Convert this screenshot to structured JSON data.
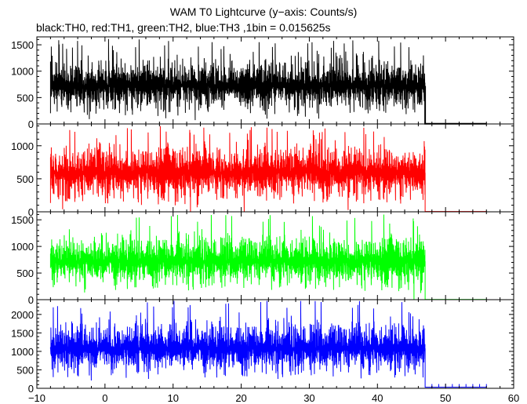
{
  "title": "WAM T0 Lightcurve (y−axis: Counts/s)",
  "subtitle": "black:TH0, red:TH1, green:TH2, blue:TH3 ,1bin = 0.015625s",
  "chart_data": {
    "type": "line",
    "title": "WAM T0 Lightcurve (y−axis: Counts/s)",
    "subtitle": "black:TH0, red:TH1, green:TH2, blue:TH3 ,1bin = 0.015625s",
    "xlim": [
      -10,
      60
    ],
    "x_ticks": [
      -10,
      0,
      10,
      20,
      30,
      40,
      50,
      60
    ],
    "x_tick_labels": [
      "−10",
      "0",
      "10",
      "20",
      "30",
      "40",
      "50",
      "60"
    ],
    "bin_seconds": 0.015625,
    "data_x_range": [
      -8,
      47
    ],
    "trailing_x_range": [
      47,
      56
    ],
    "series": [
      {
        "name": "TH0",
        "color": "#000000",
        "ylim": [
          0,
          1650
        ],
        "yticks": [
          0,
          500,
          1000,
          1500
        ],
        "mean": 720,
        "typical_min": 380,
        "typical_max": 1200,
        "peak": 1620,
        "trailing_value": 5
      },
      {
        "name": "TH1",
        "color": "#ff0000",
        "ylim": [
          0,
          1330
        ],
        "yticks": [
          0,
          500,
          1000
        ],
        "mean": 590,
        "typical_min": 280,
        "typical_max": 1000,
        "peak": 1300,
        "trailing_value": 5
      },
      {
        "name": "TH2",
        "color": "#00ff00",
        "ylim": [
          0,
          1650
        ],
        "yticks": [
          0,
          500,
          1000,
          1500
        ],
        "mean": 720,
        "typical_min": 380,
        "typical_max": 1200,
        "peak": 1600,
        "trailing_value": 5
      },
      {
        "name": "TH3",
        "color": "#0000ff",
        "ylim": [
          0,
          2400
        ],
        "yticks": [
          0,
          500,
          1000,
          1500,
          2000
        ],
        "mean": 1080,
        "typical_min": 550,
        "typical_max": 1750,
        "peak": 2380,
        "trailing_value": 30
      }
    ]
  }
}
